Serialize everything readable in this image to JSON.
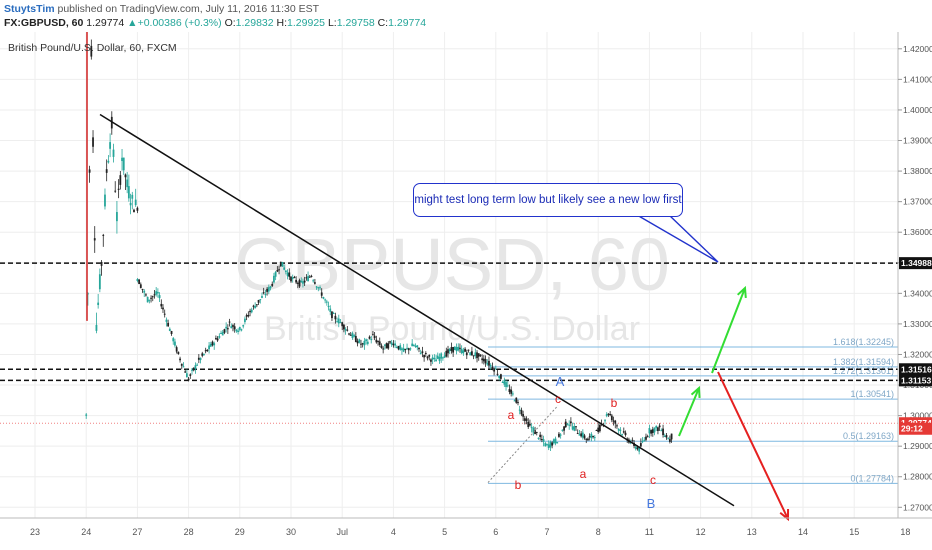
{
  "header": {
    "author": "StuytsTim",
    "published": "published on TradingView.com, July 11, 2016 11:30 EST",
    "symbol": "FX:GBPUSD, 60",
    "last": "1.29774",
    "change": "+0.00386 (+0.3%)",
    "o_label": "O:",
    "o": "1.29832",
    "h_label": "H:",
    "h": "1.29925",
    "l_label": "L:",
    "l": "1.29758",
    "c_label": "C:",
    "c": "1.29774"
  },
  "legend": "British Pound/U.S. Dollar, 60, FXCM",
  "watermark": {
    "line1": "GBPUSD, 60",
    "line2": "British Pound/U.S. Dollar"
  },
  "callout": "might test long term low but likely see a new low first",
  "colors": {
    "up": "#26a69a",
    "down": "#222222",
    "green_arrow": "#33dd33",
    "red_arrow": "#e52020",
    "fib": "#7fb8e0",
    "labels_red": "#e02020",
    "labels_blue": "#4477dd"
  },
  "chart_data": {
    "type": "candlestick",
    "y_ticks": [
      "1.42000",
      "1.41000",
      "1.40000",
      "1.39000",
      "1.38000",
      "1.37000",
      "1.36000",
      "1.35000",
      "1.34000",
      "1.33000",
      "1.32000",
      "1.31000",
      "1.30000",
      "1.29000",
      "1.28000",
      "1.27000"
    ],
    "x_ticks": [
      "23",
      "24",
      "27",
      "28",
      "29",
      "30",
      "Jul",
      "4",
      "5",
      "6",
      "7",
      "8",
      "11",
      "12",
      "13",
      "14",
      "15",
      "18"
    ],
    "ylim": [
      1.2665,
      1.4255
    ],
    "price_labels": [
      {
        "value": "1.34988",
        "y": 1.34988,
        "color": "#111111"
      },
      {
        "value": "1.31516",
        "y": 1.31516,
        "color": "#111111"
      },
      {
        "value": "1.31153",
        "y": 1.31153,
        "color": "#111111"
      },
      {
        "value": "1.29774",
        "y": 1.2975,
        "color": "#e53935"
      },
      {
        "value": "29:12",
        "y": 1.2957,
        "color": "#e53935"
      }
    ],
    "fib_levels": [
      {
        "label": "1.618(1.32245)",
        "y": 1.32245
      },
      {
        "label": "1.382(1.31594)",
        "y": 1.31594
      },
      {
        "label": "1.272(1.31301)",
        "y": 1.31301
      },
      {
        "label": "1(1.30541)",
        "y": 1.30541
      },
      {
        "label": "0.5(1.29163)",
        "y": 1.29163
      },
      {
        "label": "0(1.27784)",
        "y": 1.27784
      }
    ],
    "horizontal_levels": [
      1.34988,
      1.31516,
      1.31153
    ],
    "wave_labels": [
      {
        "text": "a",
        "x": 7.5,
        "y": 1.3025,
        "color": "red"
      },
      {
        "text": "b",
        "x": 7.75,
        "y": 1.2875,
        "color": "red"
      },
      {
        "text": "c",
        "x": 8.95,
        "y": 1.3065,
        "color": "red"
      },
      {
        "text": "a",
        "x": 9.9,
        "y": 1.2892,
        "color": "red"
      },
      {
        "text": "b",
        "x": 10.55,
        "y": 1.3045,
        "color": "red"
      },
      {
        "text": "c",
        "x": 11.35,
        "y": 1.2858,
        "color": "red"
      },
      {
        "text": "A",
        "x": 9.0,
        "y": 1.3133,
        "color": "blue"
      },
      {
        "text": "B",
        "x": 11.35,
        "y": 1.2763,
        "color": "blue"
      }
    ],
    "trendline": {
      "from": [
        1.3,
        1.3985
      ],
      "to": [
        14.0,
        1.2705
      ]
    },
    "ohlc_points": [
      [
        1.0,
        1.3
      ],
      [
        1.1,
        1.42
      ],
      [
        1.2,
        1.33
      ],
      [
        1.3,
        1.35
      ],
      [
        1.4,
        1.38
      ],
      [
        1.5,
        1.395
      ],
      [
        1.6,
        1.365
      ],
      [
        1.7,
        1.385
      ],
      [
        1.8,
        1.375
      ],
      [
        1.9,
        1.37
      ],
      [
        2.0,
        1.368
      ],
      [
        2.0,
        1.345
      ],
      [
        2.2,
        1.338
      ],
      [
        2.4,
        1.34
      ],
      [
        2.6,
        1.33
      ],
      [
        2.8,
        1.32
      ],
      [
        3.0,
        1.312
      ],
      [
        3.2,
        1.318
      ],
      [
        3.4,
        1.322
      ],
      [
        3.6,
        1.326
      ],
      [
        3.8,
        1.33
      ],
      [
        4.0,
        1.328
      ],
      [
        4.2,
        1.334
      ],
      [
        4.4,
        1.338
      ],
      [
        4.6,
        1.342
      ],
      [
        4.8,
        1.35
      ],
      [
        5.0,
        1.345
      ],
      [
        5.2,
        1.343
      ],
      [
        5.4,
        1.346
      ],
      [
        5.6,
        1.34
      ],
      [
        5.8,
        1.333
      ],
      [
        6.0,
        1.33
      ],
      [
        6.2,
        1.326
      ],
      [
        6.4,
        1.323
      ],
      [
        6.6,
        1.326
      ],
      [
        6.8,
        1.322
      ],
      [
        7.0,
        1.324
      ],
      [
        7.2,
        1.321
      ],
      [
        7.4,
        1.323
      ],
      [
        7.6,
        1.32
      ],
      [
        7.8,
        1.318
      ],
      [
        8.0,
        1.32
      ],
      [
        8.2,
        1.322
      ],
      [
        8.4,
        1.321
      ],
      [
        8.6,
        1.32
      ],
      [
        8.8,
        1.318
      ],
      [
        9.0,
        1.315
      ],
      [
        9.2,
        1.31
      ],
      [
        9.4,
        1.305
      ],
      [
        9.6,
        1.298
      ],
      [
        9.8,
        1.294
      ],
      [
        10.0,
        1.29
      ],
      [
        10.2,
        1.292
      ],
      [
        10.4,
        1.298
      ],
      [
        10.6,
        1.295
      ],
      [
        10.8,
        1.292
      ],
      [
        11.0,
        1.295
      ],
      [
        11.2,
        1.301
      ],
      [
        11.4,
        1.296
      ],
      [
        11.6,
        1.292
      ],
      [
        11.8,
        1.289
      ],
      [
        12.0,
        1.295
      ],
      [
        12.2,
        1.296
      ],
      [
        12.4,
        1.292
      ],
      [
        12.6,
        1.299
      ],
      [
        12.8,
        1.3
      ],
      [
        13.0,
        1.297
      ],
      [
        13.2,
        1.296
      ],
      [
        13.4,
        1.301
      ],
      [
        13.6,
        1.304
      ],
      [
        13.8,
        1.3
      ],
      [
        14.0,
        1.298
      ],
      [
        14.2,
        1.296
      ],
      [
        14.4,
        1.289
      ],
      [
        14.6,
        1.293
      ],
      [
        14.8,
        1.298
      ],
      [
        15.0,
        1.2975
      ]
    ]
  }
}
